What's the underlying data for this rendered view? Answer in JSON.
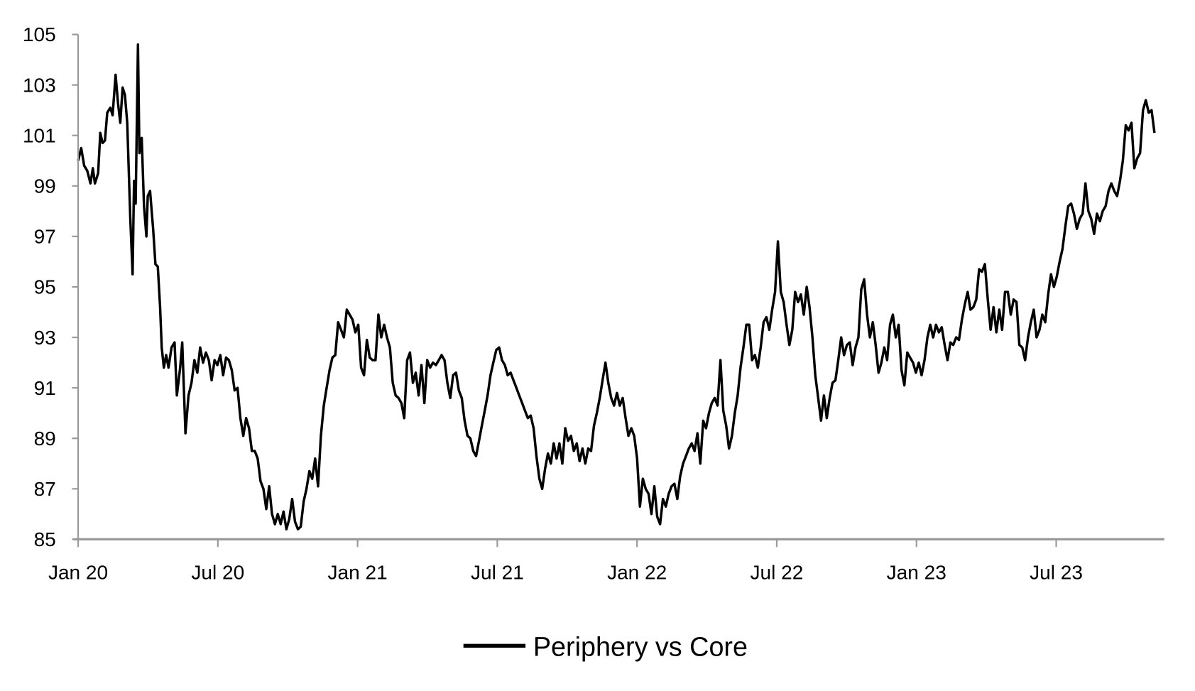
{
  "chart_data": {
    "type": "line",
    "title": "",
    "xlabel": "",
    "ylabel": "",
    "ylim": [
      85,
      105
    ],
    "yticks": [
      "85",
      "87",
      "89",
      "91",
      "93",
      "95",
      "97",
      "99",
      "101",
      "103",
      "105"
    ],
    "xticks": [
      {
        "label": "Jan 20",
        "month": 0
      },
      {
        "label": "Jul 20",
        "month": 6
      },
      {
        "label": "Jan 21",
        "month": 12
      },
      {
        "label": "Jul 21",
        "month": 18
      },
      {
        "label": "Jan 22",
        "month": 24
      },
      {
        "label": "Jul 22",
        "month": 30
      },
      {
        "label": "Jan 23",
        "month": 36
      },
      {
        "label": "Jul 23",
        "month": 42
      }
    ],
    "x_unit": "months since Jan 2020",
    "xlim": [
      0,
      46.7
    ],
    "grid": false,
    "legend_position": "bottom-center",
    "series": [
      {
        "name": "Periphery vs Core",
        "color": "#000000",
        "head_points": [
          [
            0.0,
            100.0
          ],
          [
            0.13,
            100.5
          ],
          [
            0.26,
            99.8
          ],
          [
            0.39,
            99.6
          ],
          [
            0.53,
            99.1
          ],
          [
            0.63,
            99.7
          ],
          [
            0.72,
            99.1
          ],
          [
            0.86,
            99.5
          ],
          [
            0.95,
            101.1
          ],
          [
            1.05,
            100.7
          ],
          [
            1.15,
            100.8
          ],
          [
            1.25,
            101.9
          ],
          [
            1.38,
            102.1
          ],
          [
            1.48,
            101.8
          ],
          [
            1.61,
            103.4
          ],
          [
            1.71,
            102.3
          ],
          [
            1.81,
            101.5
          ],
          [
            1.91,
            102.9
          ],
          [
            2.01,
            102.6
          ],
          [
            2.11,
            101.5
          ],
          [
            2.24,
            97.7
          ],
          [
            2.34,
            95.5
          ],
          [
            2.4,
            99.2
          ],
          [
            2.47,
            98.3
          ],
          [
            2.57,
            104.6
          ],
          [
            2.63,
            100.3
          ],
          [
            2.73,
            100.9
          ],
          [
            2.83,
            98.2
          ],
          [
            2.93,
            97.0
          ],
          [
            2.99,
            98.6
          ],
          [
            3.09,
            98.8
          ],
          [
            3.22,
            97.3
          ],
          [
            3.32,
            95.9
          ],
          [
            3.42,
            95.8
          ],
          [
            3.52,
            94.2
          ],
          [
            3.59,
            92.6
          ],
          [
            3.68,
            91.8
          ],
          [
            3.78,
            92.3
          ],
          [
            3.88,
            91.8
          ],
          [
            4.01,
            92.6
          ],
          [
            4.14,
            92.8
          ],
          [
            4.24,
            90.7
          ],
          [
            4.38,
            91.8
          ],
          [
            4.47,
            92.8
          ],
          [
            4.61,
            89.2
          ],
          [
            4.74,
            90.7
          ]
        ],
        "tail_start_month": 4.87,
        "tail_end_month": 46.22,
        "tail_values": [
          91.2,
          92.1,
          91.6,
          92.6,
          92.0,
          92.4,
          92.1,
          91.3,
          92.1,
          91.9,
          92.3,
          91.5,
          92.2,
          92.1,
          91.7,
          90.9,
          91.0,
          89.8,
          89.1,
          89.8,
          89.4,
          88.5,
          88.5,
          88.2,
          87.3,
          87.0,
          86.2,
          87.1,
          86.0,
          85.6,
          86.0,
          85.6,
          86.1,
          85.4,
          85.8,
          86.6,
          85.7,
          85.4,
          85.5,
          86.5,
          87.0,
          87.7,
          87.4,
          88.2,
          87.1,
          89.1,
          90.3,
          91.0,
          91.7,
          92.2,
          92.3,
          93.6,
          93.3,
          93.0,
          94.1,
          93.9,
          93.7,
          93.2,
          93.5,
          91.8,
          91.5,
          92.9,
          92.2,
          92.1,
          92.1,
          93.9,
          93.0,
          93.5,
          93.0,
          92.6,
          91.2,
          90.7,
          90.6,
          90.4,
          89.8,
          92.1,
          92.4,
          91.2,
          91.6,
          90.7,
          91.9,
          90.4,
          92.1,
          91.8,
          92.0,
          91.9,
          92.1,
          92.3,
          92.1,
          91.2,
          90.6,
          91.5,
          91.6,
          90.9,
          90.6,
          89.7,
          89.1,
          89.0,
          88.5,
          88.3,
          88.9,
          89.5,
          90.1,
          90.7,
          91.5,
          92.0,
          92.5,
          92.6,
          92.1,
          91.9,
          91.5,
          91.6,
          91.3,
          91.0,
          90.7,
          90.4,
          90.1,
          89.8,
          89.9,
          89.4,
          88.3,
          87.4,
          87.0,
          87.8,
          88.4,
          88.0,
          88.8,
          88.2,
          88.8,
          88.0,
          89.4,
          88.9,
          89.1,
          88.5,
          88.8,
          88.1,
          88.6,
          88.0,
          88.6,
          88.5,
          89.5,
          90.0,
          90.6,
          91.3,
          92.0,
          91.2,
          90.6,
          90.3,
          90.8,
          90.3,
          90.6,
          89.8,
          89.1,
          89.4,
          89.1,
          88.2,
          86.3,
          87.4,
          87.0,
          86.8,
          86.0,
          87.1,
          85.9,
          85.6,
          86.6,
          86.3,
          86.8,
          87.1,
          87.2,
          86.6,
          87.5,
          88.0,
          88.3,
          88.6,
          88.8,
          88.5,
          89.2,
          88.0,
          89.7,
          89.4,
          90.0,
          90.4,
          90.6,
          90.3,
          92.1,
          90.1,
          89.5,
          88.6,
          89.1,
          90.0,
          90.7,
          91.8,
          92.6,
          93.5,
          93.5,
          92.1,
          92.3,
          91.8,
          92.6,
          93.6,
          93.8,
          93.3,
          94.1,
          94.8,
          96.8,
          94.8,
          94.4,
          93.5,
          92.7,
          93.3,
          94.8,
          94.4,
          94.7,
          93.9,
          95.0,
          94.2,
          93.0,
          91.5,
          90.6,
          89.7,
          90.7,
          89.8,
          90.6,
          91.2,
          91.3,
          92.1,
          93.0,
          92.3,
          92.7,
          92.8,
          91.9,
          92.6,
          93.0,
          94.9,
          95.3,
          93.9,
          93.0,
          93.6,
          92.7,
          91.6,
          92.0,
          92.6,
          92.1,
          93.5,
          93.9,
          93.0,
          93.5,
          91.7,
          91.1,
          92.4,
          92.2,
          92.0,
          91.6,
          92.0,
          91.5,
          92.1,
          93.0,
          93.5,
          93.0,
          93.5,
          93.2,
          93.4,
          92.7,
          92.1,
          92.8,
          92.7,
          93.0,
          92.9,
          93.7,
          94.3,
          94.8,
          94.1,
          94.2,
          94.5,
          95.7,
          95.6,
          95.9,
          94.5,
          93.3,
          94.2,
          93.2,
          94.1,
          93.3,
          94.8,
          94.8,
          93.9,
          94.5,
          94.4,
          92.7,
          92.6,
          92.1,
          93.0,
          93.6,
          94.1,
          93.0,
          93.3,
          93.9,
          93.6,
          94.7,
          95.5,
          95.0,
          95.4,
          96.0,
          96.5,
          97.4,
          98.2,
          98.3,
          97.9,
          97.3,
          97.7,
          97.9,
          99.1,
          98.0,
          97.7,
          97.1,
          97.9,
          97.6,
          98.0,
          98.2,
          98.8,
          99.1,
          98.8,
          98.6,
          99.2,
          100.0,
          101.4,
          101.2,
          101.5,
          99.7,
          100.1,
          100.3,
          102.0,
          102.4,
          101.9,
          102.0,
          101.1
        ]
      }
    ],
    "legend": [
      "Periphery vs Core"
    ],
    "axis_color": "#999999"
  }
}
